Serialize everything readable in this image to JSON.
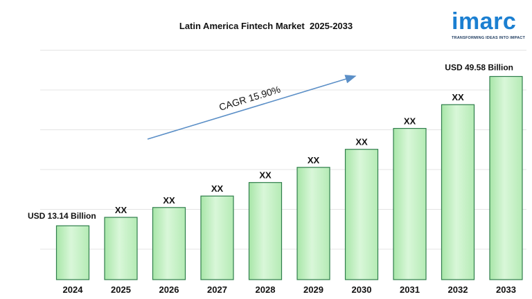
{
  "chart_data": {
    "type": "bar",
    "title": "Latin America Fintech Market  2025-2033",
    "categories": [
      "2024",
      "2025",
      "2026",
      "2027",
      "2028",
      "2029",
      "2030",
      "2031",
      "2032",
      "2033"
    ],
    "values": [
      13.14,
      15.2,
      17.6,
      20.4,
      23.7,
      27.4,
      31.8,
      36.9,
      42.7,
      49.58
    ],
    "unit": "USD Billion",
    "data_labels": [
      "",
      "XX",
      "XX",
      "XX",
      "XX",
      "XX",
      "XX",
      "XX",
      "XX",
      ""
    ],
    "start_label": "USD 13.14 Billion",
    "end_label": "USD  49.58 Billion",
    "cagr_label": "CAGR  15.90%",
    "ylim": [
      0,
      52
    ],
    "grid": true,
    "bar_color": "#c8f0c8",
    "bar_border": "#2e7d4a",
    "arrow_color": "#5b8fc7"
  },
  "logo": {
    "name": "imarc",
    "tagline": "TRANSFORMING IDEAS INTO IMPACT",
    "color": "#1b7fd1"
  }
}
